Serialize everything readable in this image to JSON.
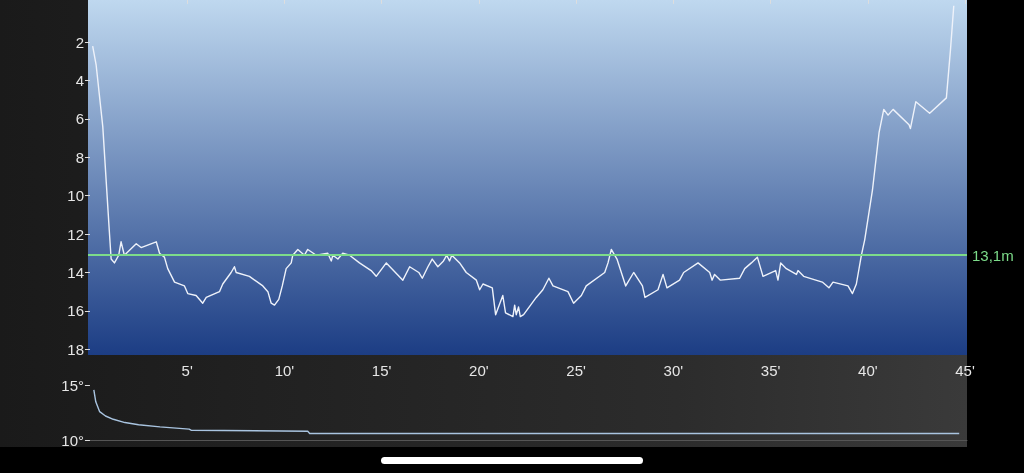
{
  "chart_data": [
    {
      "type": "line",
      "marker": "none",
      "line_style": "solid",
      "xlim": [
        -0.1,
        45.1
      ],
      "ylim": [
        18.3,
        -0.2
      ],
      "xticks": [
        {
          "value": 5,
          "label": "5'"
        },
        {
          "value": 10,
          "label": "10'"
        },
        {
          "value": 15,
          "label": "15'"
        },
        {
          "value": 20,
          "label": "20'"
        },
        {
          "value": 25,
          "label": "25'"
        },
        {
          "value": 30,
          "label": "30'"
        },
        {
          "value": 35,
          "label": "35'"
        },
        {
          "value": 40,
          "label": "40'"
        },
        {
          "value": 45,
          "label": "45'"
        }
      ],
      "yticks": [
        2,
        4,
        6,
        8,
        10,
        12,
        14,
        16,
        18
      ],
      "ref_lines": [
        {
          "axis": "y",
          "value": 13.1,
          "label": "13,1m",
          "color": "#7ddc8a"
        }
      ],
      "series": [
        {
          "color": "#eef2fa",
          "x": [
            0.14,
            0.32,
            0.66,
            1.0,
            1.09,
            1.26,
            1.48,
            1.6,
            1.77,
            2.38,
            2.63,
            3.41,
            3.58,
            3.83,
            4.0,
            4.35,
            4.86,
            5.03,
            5.46,
            5.8,
            5.98,
            6.66,
            6.83,
            7.26,
            7.43,
            7.52,
            8.2,
            8.89,
            9.15,
            9.32,
            9.49,
            9.71,
            9.89,
            10.09,
            10.35,
            10.43,
            10.69,
            11.03,
            11.2,
            11.64,
            12.23,
            12.41,
            12.49,
            12.75,
            13.0,
            13.35,
            13.86,
            14.46,
            14.72,
            15.24,
            16.09,
            16.44,
            16.91,
            17.09,
            17.38,
            17.6,
            17.89,
            18.18,
            18.35,
            18.49,
            18.61,
            19.01,
            19.35,
            19.87,
            20.04,
            20.21,
            20.69,
            20.86,
            21.23,
            21.37,
            21.75,
            21.84,
            21.92,
            22.04,
            22.13,
            22.3,
            22.95,
            23.29,
            23.6,
            23.81,
            24.58,
            24.87,
            25.27,
            25.52,
            26.47,
            26.64,
            26.81,
            27.1,
            27.55,
            27.96,
            28.41,
            28.54,
            29.21,
            29.47,
            29.67,
            30.32,
            30.53,
            31.27,
            31.87,
            31.99,
            32.12,
            32.42,
            33.41,
            33.67,
            34.01,
            34.32,
            34.61,
            35.26,
            35.38,
            35.52,
            35.81,
            36.33,
            36.41,
            36.7,
            37.66,
            38.0,
            38.21,
            38.98,
            39.21,
            39.41,
            39.67,
            39.84,
            40.24,
            40.58,
            40.82,
            41.04,
            41.3,
            42.12,
            42.19,
            42.47,
            43.18,
            44.04,
            44.25,
            44.42
          ],
          "values": [
            2.2,
            3.2,
            6.4,
            11.9,
            13.3,
            13.5,
            13.1,
            12.4,
            13.1,
            12.5,
            12.7,
            12.4,
            13.0,
            13.2,
            13.8,
            14.5,
            14.7,
            15.1,
            15.2,
            15.6,
            15.3,
            15.0,
            14.6,
            14.0,
            13.7,
            14.0,
            14.2,
            14.7,
            15.0,
            15.6,
            15.7,
            15.4,
            14.7,
            13.8,
            13.5,
            13.1,
            12.8,
            13.1,
            12.8,
            13.1,
            13.0,
            13.4,
            13.1,
            13.3,
            13.0,
            13.1,
            13.5,
            13.9,
            14.2,
            13.5,
            14.4,
            13.7,
            14.0,
            14.3,
            13.7,
            13.3,
            13.7,
            13.4,
            13.1,
            13.4,
            13.1,
            13.5,
            14.0,
            14.4,
            14.9,
            14.6,
            14.8,
            16.2,
            15.2,
            16.1,
            16.3,
            15.7,
            16.2,
            15.8,
            16.3,
            16.2,
            15.3,
            14.9,
            14.3,
            14.7,
            15.0,
            15.6,
            15.2,
            14.7,
            14.0,
            13.5,
            12.8,
            13.3,
            14.7,
            14.0,
            14.7,
            15.3,
            14.9,
            14.1,
            14.8,
            14.4,
            14.0,
            13.5,
            14.0,
            14.4,
            14.1,
            14.4,
            14.3,
            13.8,
            13.5,
            13.2,
            14.2,
            13.9,
            14.4,
            13.5,
            13.8,
            14.1,
            13.9,
            14.2,
            14.5,
            14.8,
            14.5,
            14.7,
            15.1,
            14.6,
            13.1,
            12.3,
            9.7,
            6.7,
            5.5,
            5.8,
            5.5,
            6.3,
            6.5,
            5.1,
            5.7,
            4.9,
            2.4,
            0.1
          ]
        }
      ]
    },
    {
      "type": "line",
      "marker": "none",
      "line_style": "solid",
      "tick_labels": "y",
      "xlim": [
        -0.1,
        45.1
      ],
      "ylim": [
        10,
        15
      ],
      "yticks": [
        {
          "value": 10,
          "label": "10°"
        },
        {
          "value": 15,
          "label": "15°"
        }
      ],
      "series": [
        {
          "color": "#a9c4e0",
          "x": [
            0.2,
            0.3,
            0.5,
            0.8,
            1.2,
            1.8,
            2.5,
            3.6,
            5.1,
            5.2,
            11.2,
            11.3,
            44.7
          ],
          "values": [
            14.6,
            13.5,
            12.6,
            12.2,
            11.9,
            11.6,
            11.4,
            11.2,
            11.0,
            10.9,
            10.8,
            10.6,
            10.6
          ]
        }
      ]
    }
  ]
}
